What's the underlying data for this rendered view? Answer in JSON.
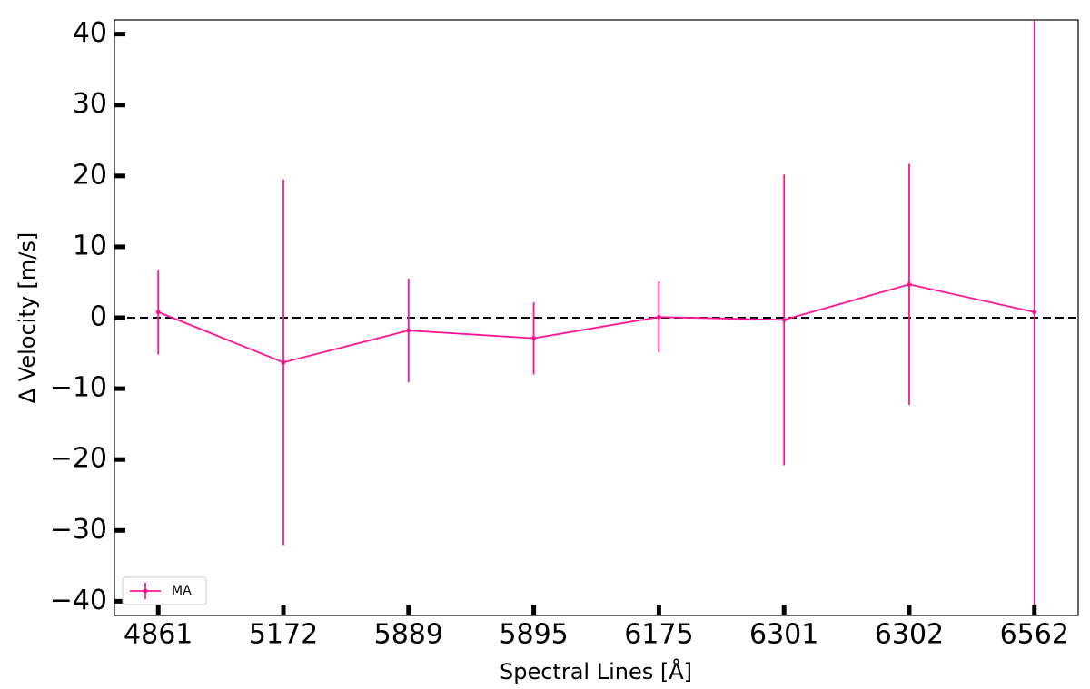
{
  "chart_data": {
    "type": "errorbar",
    "xlabel": "Spectral Lines [Å]",
    "ylabel": "Δ Velocity [m/s]",
    "categories": [
      "4861",
      "5172",
      "5889",
      "5895",
      "6175",
      "6301",
      "6302",
      "6562"
    ],
    "series": [
      {
        "name": "MA",
        "color": "#ff1493",
        "values": [
          0.8,
          -6.3,
          -1.8,
          -2.9,
          0.1,
          -0.3,
          4.7,
          0.8
        ],
        "errors": [
          6,
          25.8,
          7.3,
          5.1,
          5,
          20.5,
          17,
          45
        ]
      }
    ],
    "ylim": [
      -42,
      42
    ],
    "yticks": [
      {
        "value": -40,
        "label": "−40"
      },
      {
        "value": -30,
        "label": "−30"
      },
      {
        "value": -20,
        "label": "−20"
      },
      {
        "value": -10,
        "label": "−10"
      },
      0,
      10,
      20,
      30,
      40
    ],
    "hline": 0,
    "legend": "lower left"
  }
}
